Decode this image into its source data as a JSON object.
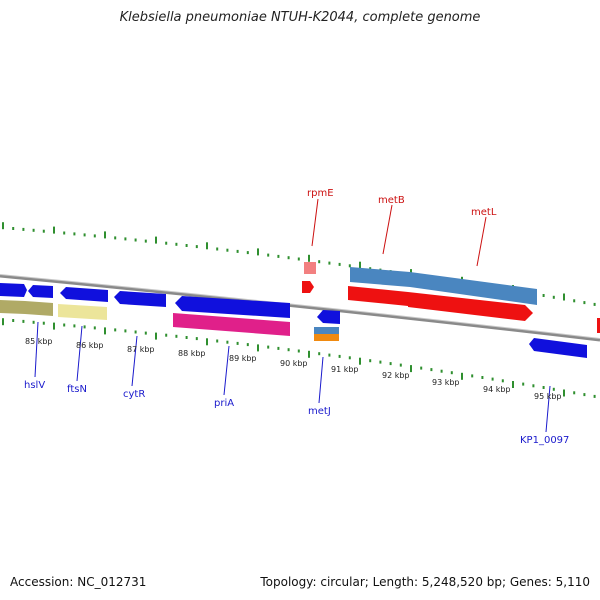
{
  "title": "Klebsiella pneumoniae NTUH-K2044, complete genome",
  "footer": {
    "accession": "Accession: NC_012731",
    "stats": "Topology: circular; Length: 5,248,520 bp; Genes: 5,110"
  },
  "colors": {
    "backbone": "#8a8a8a",
    "tick_green": "#2f8f2f",
    "label_blue": "#1a1acc",
    "label_red": "#cc1111",
    "gene_blue": "#1010dd",
    "gene_red": "#ee1111",
    "gene_steel": "#4a86c0",
    "gene_pink": "#e0208a",
    "gene_yellow": "#ece59a",
    "gene_olive": "#b0aa66",
    "gene_orange": "#f08a10",
    "gene_salmon": "#f28080"
  },
  "tick_labels": [
    "85 kbp",
    "86 kbp",
    "87 kbp",
    "88 kbp",
    "89 kbp",
    "90 kbp",
    "91 kbp",
    "92 kbp",
    "93 kbp",
    "94 kbp",
    "95 kbp"
  ],
  "gene_labels": [
    {
      "text": "rpmE",
      "color": "red"
    },
    {
      "text": "metB",
      "color": "red"
    },
    {
      "text": "metL",
      "color": "red"
    },
    {
      "text": "hslV",
      "color": "blue"
    },
    {
      "text": "ftsN",
      "color": "blue"
    },
    {
      "text": "cytR",
      "color": "blue"
    },
    {
      "text": "priA",
      "color": "blue"
    },
    {
      "text": "metJ",
      "color": "blue"
    },
    {
      "text": "KP1_0097",
      "color": "blue"
    }
  ]
}
